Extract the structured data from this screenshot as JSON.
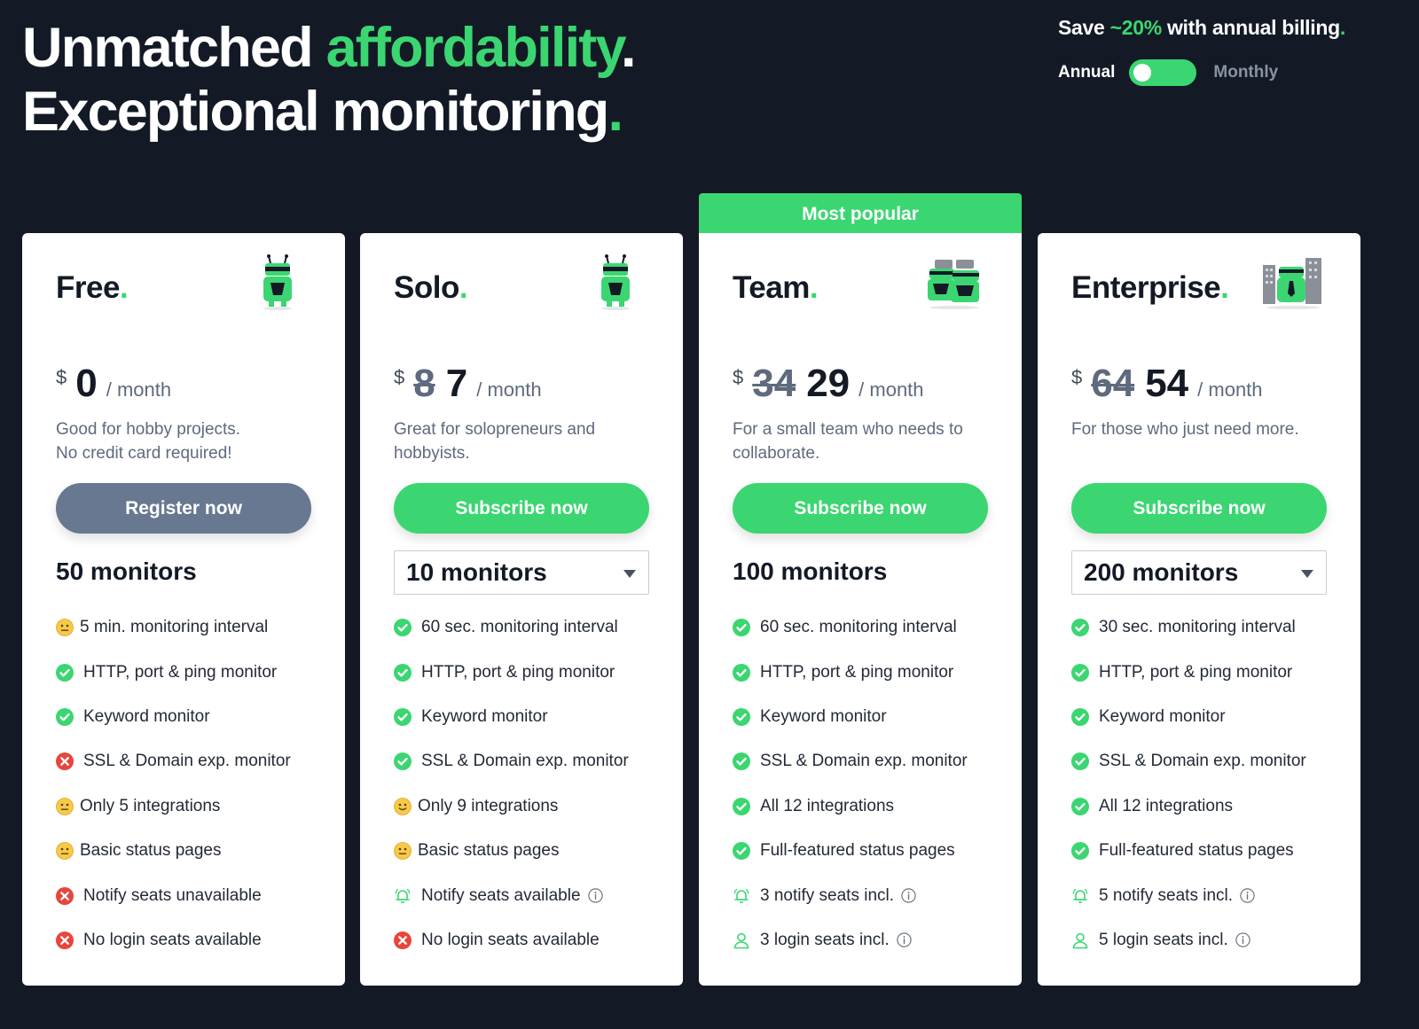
{
  "header": {
    "line1_a": "Unmatched ",
    "line1_b": "affordability",
    "line1_dot": ".",
    "line2_a": "Exceptional monitoring",
    "line2_dot": "."
  },
  "billing": {
    "save_a": "Save ",
    "save_pct": "~20%",
    "save_b": " with annual billing",
    "save_dot": ".",
    "annual_label": "Annual",
    "monthly_label": "Monthly",
    "toggle_selected": "Annual"
  },
  "colors": {
    "accent": "#3bd671",
    "background": "#131a26",
    "gray_button": "#687891",
    "error": "#e8453c",
    "neutral_emoji": "#f7c948"
  },
  "popular_badge": "Most popular",
  "plans": [
    {
      "name": "Free",
      "dot": ".",
      "currency": "$",
      "old_price": "",
      "price": "0",
      "period": "/ month",
      "desc_line1": "Good for hobby projects.",
      "desc_line2": "No credit card required!",
      "cta": "Register now",
      "monitors": "50 monitors",
      "features": [
        {
          "icon": "neutral-face-icon",
          "text": "5 min. monitoring interval"
        },
        {
          "icon": "check-icon",
          "text": "HTTP, port & ping monitor"
        },
        {
          "icon": "check-icon",
          "text": "Keyword monitor"
        },
        {
          "icon": "cross-icon",
          "text": "SSL & Domain exp. monitor"
        },
        {
          "icon": "neutral-face-icon",
          "text": "Only 5 integrations"
        },
        {
          "icon": "neutral-face-icon",
          "text": "Basic status pages"
        },
        {
          "icon": "cross-icon",
          "text": "Notify seats unavailable"
        },
        {
          "icon": "cross-icon",
          "text": "No login seats available"
        }
      ]
    },
    {
      "name": "Solo",
      "dot": ".",
      "currency": "$",
      "old_price": "8",
      "price": "7",
      "period": "/ month",
      "desc_line1": "Great for solopreneurs and",
      "desc_line2": "hobbyists.",
      "cta": "Subscribe now",
      "monitors": "10 monitors",
      "features": [
        {
          "icon": "check-icon",
          "text": "60 sec. monitoring interval"
        },
        {
          "icon": "check-icon",
          "text": "HTTP, port & ping monitor"
        },
        {
          "icon": "check-icon",
          "text": "Keyword monitor"
        },
        {
          "icon": "check-icon",
          "text": "SSL & Domain exp. monitor"
        },
        {
          "icon": "smile-face-icon",
          "text": "Only 9 integrations"
        },
        {
          "icon": "neutral-face-icon",
          "text": "Basic status pages"
        },
        {
          "icon": "bell-icon",
          "text": "Notify seats available"
        },
        {
          "icon": "cross-icon",
          "text": "No login seats available"
        }
      ]
    },
    {
      "name": "Team",
      "dot": ".",
      "currency": "$",
      "old_price": "34",
      "price": "29",
      "period": "/ month",
      "desc_line1": "For a small team who needs to",
      "desc_line2": "collaborate.",
      "cta": "Subscribe now",
      "monitors": "100 monitors",
      "features": [
        {
          "icon": "check-icon",
          "text": "60 sec. monitoring interval"
        },
        {
          "icon": "check-icon",
          "text": "HTTP, port & ping monitor"
        },
        {
          "icon": "check-icon",
          "text": "Keyword monitor"
        },
        {
          "icon": "check-icon",
          "text": "SSL & Domain exp. monitor"
        },
        {
          "icon": "check-icon",
          "text": "All 12 integrations"
        },
        {
          "icon": "check-icon",
          "text": "Full-featured status pages"
        },
        {
          "icon": "bell-icon",
          "text": "3 notify seats incl."
        },
        {
          "icon": "user-icon",
          "text": "3 login seats incl."
        }
      ]
    },
    {
      "name": "Enterprise",
      "dot": ".",
      "currency": "$",
      "old_price": "64",
      "price": "54",
      "period": "/ month",
      "desc_line1": "For those who just need more.",
      "desc_line2": "",
      "cta": "Subscribe now",
      "monitors": "200 monitors",
      "features": [
        {
          "icon": "check-icon",
          "text": "30 sec. monitoring interval"
        },
        {
          "icon": "check-icon",
          "text": "HTTP, port & ping monitor"
        },
        {
          "icon": "check-icon",
          "text": "Keyword monitor"
        },
        {
          "icon": "check-icon",
          "text": "SSL & Domain exp. monitor"
        },
        {
          "icon": "check-icon",
          "text": "All 12 integrations"
        },
        {
          "icon": "check-icon",
          "text": "Full-featured status pages"
        },
        {
          "icon": "bell-icon",
          "text": "5 notify seats incl."
        },
        {
          "icon": "user-icon",
          "text": "5 login seats incl."
        }
      ]
    }
  ]
}
